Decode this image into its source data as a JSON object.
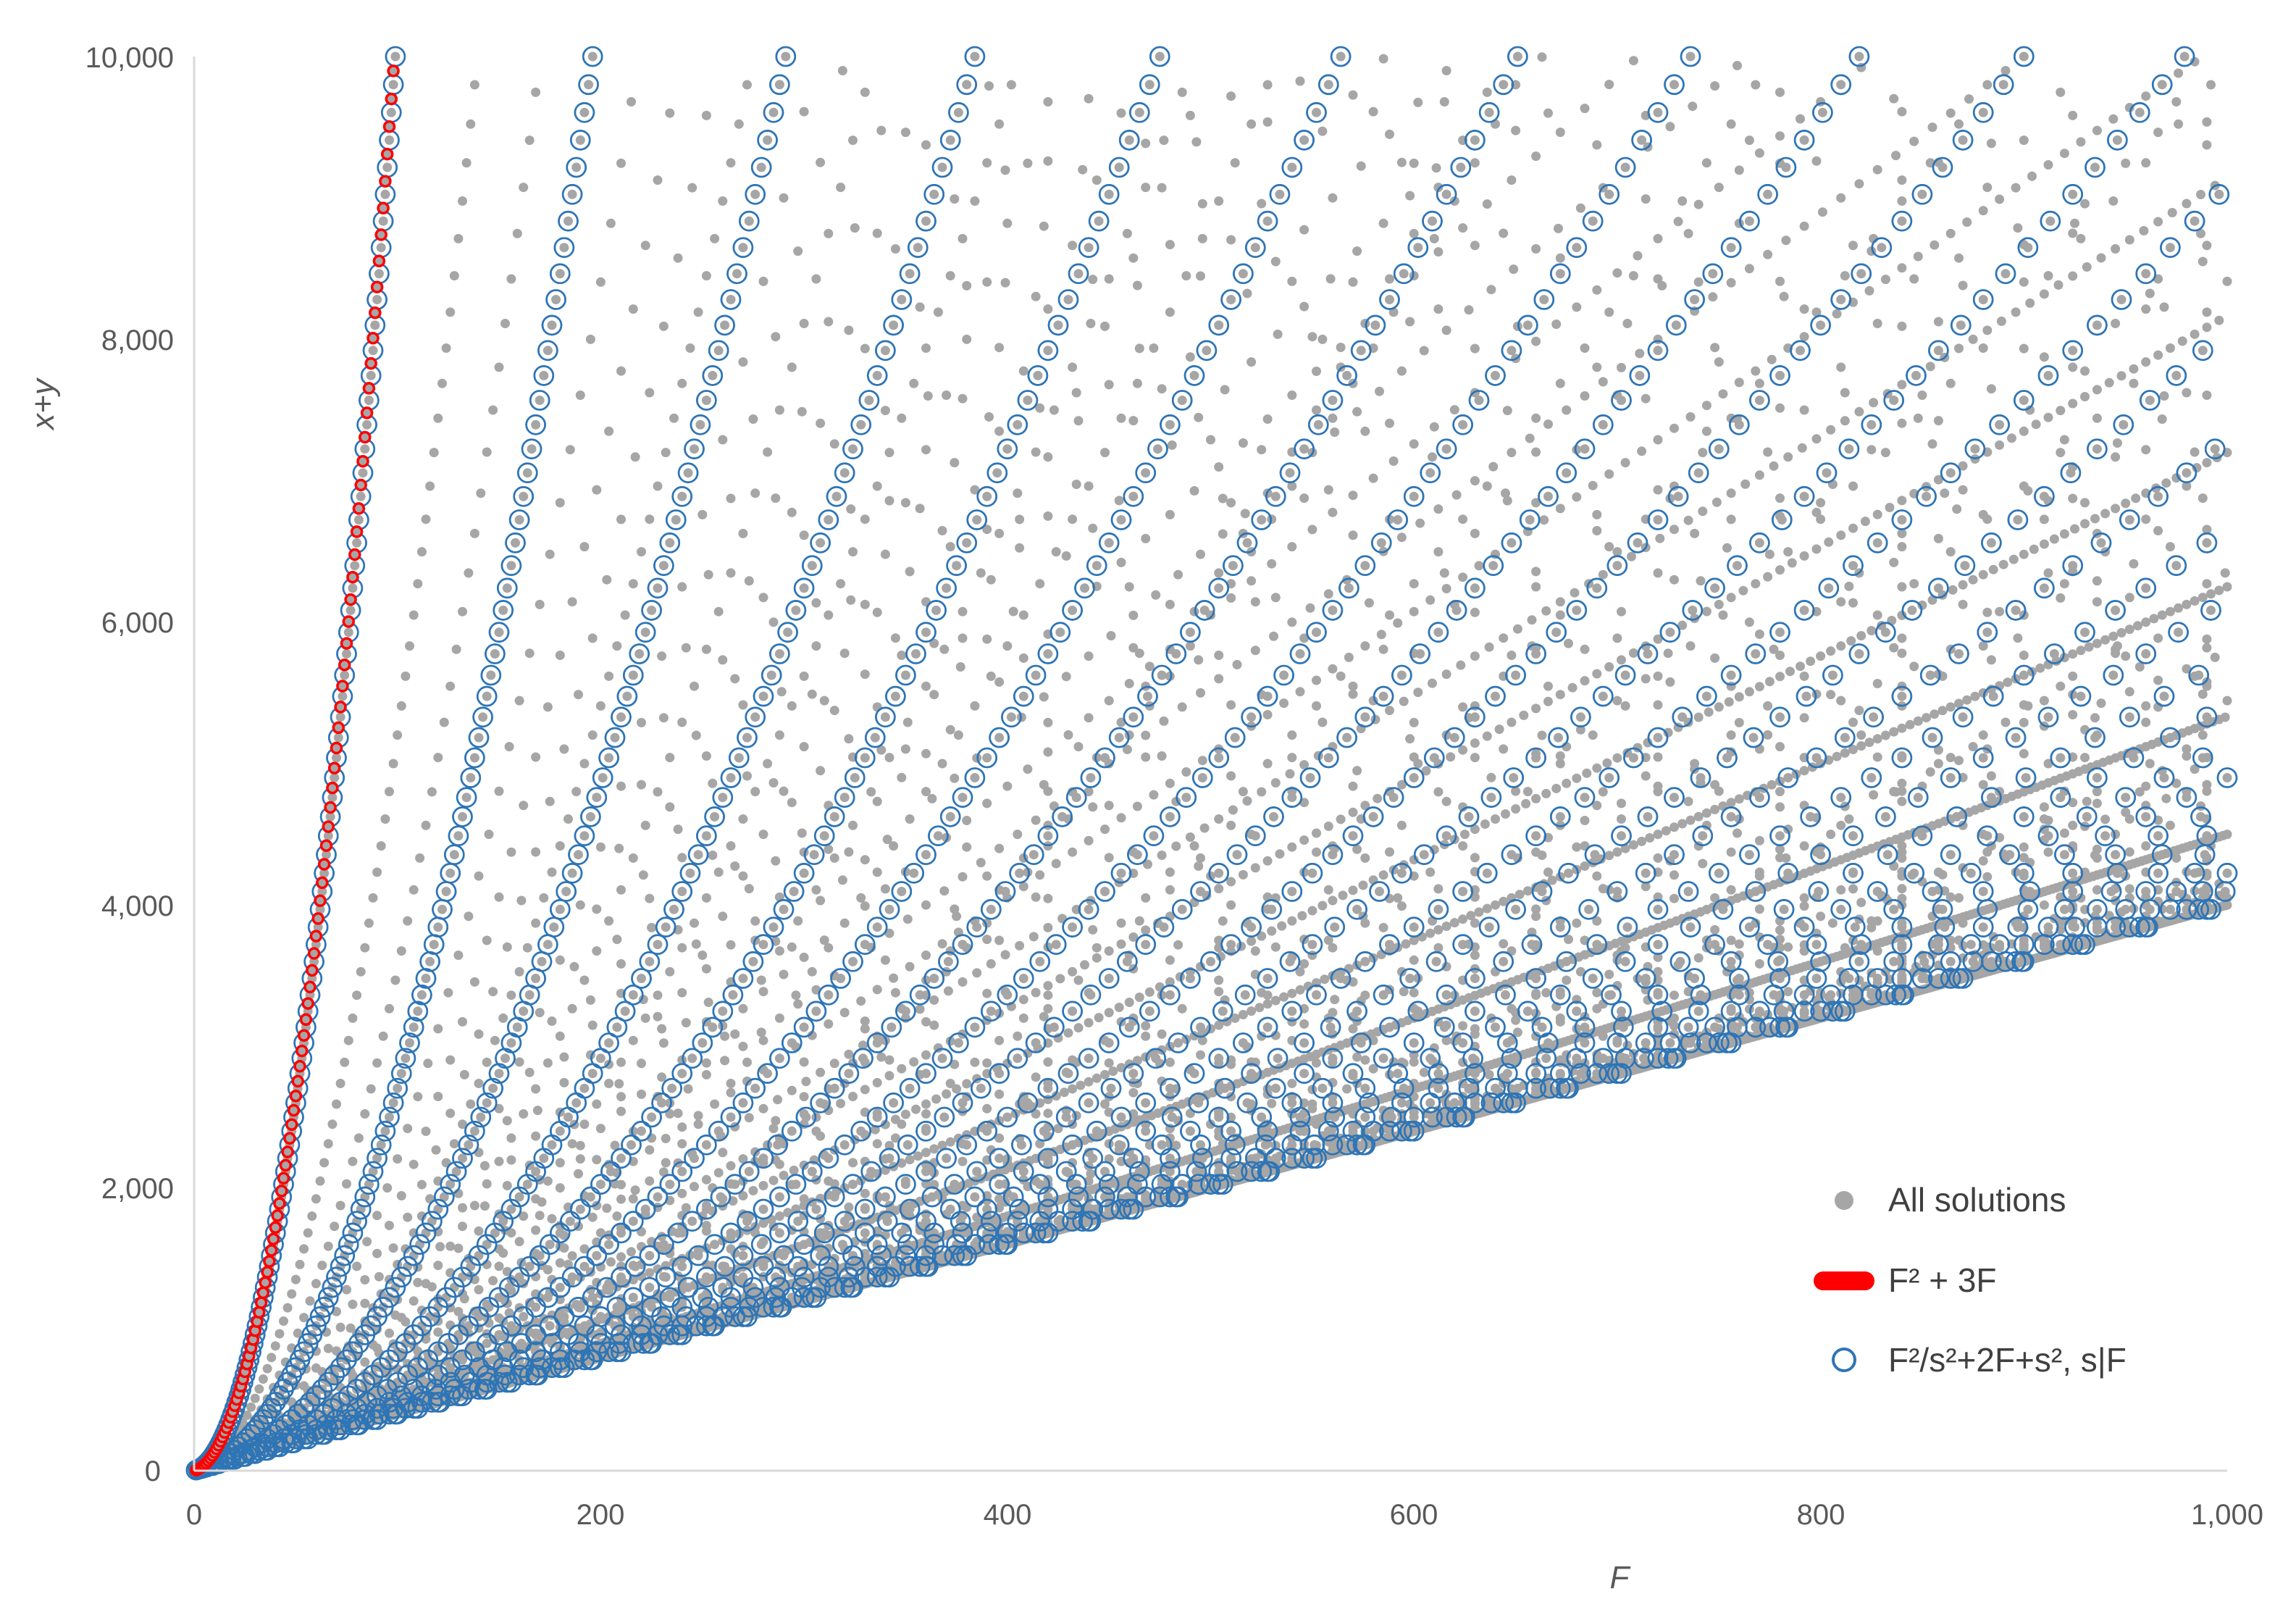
{
  "chart_data": {
    "type": "scatter",
    "title": "",
    "xlabel": "F",
    "ylabel": "x+y",
    "xlim": [
      0,
      1000
    ],
    "ylim": [
      0,
      10000
    ],
    "x_ticks": [
      "0",
      "200",
      "400",
      "600",
      "800",
      "1,000"
    ],
    "y_ticks": [
      "0",
      "2,000",
      "4,000",
      "6,000",
      "8,000",
      "10,000"
    ],
    "grid": false,
    "legend_position": "bottom-right",
    "colors": {
      "all": "#a6a6a6",
      "f2_3f": "#ff0000",
      "divisor": "#2e75b6",
      "axis": "#d9d9d9"
    },
    "series": [
      {
        "name": "All solutions",
        "marker": "filled-circle",
        "color": "#a6a6a6",
        "rule": "all (F, x+y) with 1/x + 1/y = 1/F style solutions: F^2/d + d + 2F for every divisor d of F^2, F = 1..1000, x+y <= 10000"
      },
      {
        "name": "F² + 3F",
        "marker": "filled-circle-red-outline",
        "color": "#ff0000",
        "rule": "x+y = F^2 + 3F, F = 1..98"
      },
      {
        "name": "F²/s²+2F+s², s|F",
        "marker": "open-circle",
        "color": "#2e75b6",
        "rule": "x+y = F^2/s^2 + 2F + s^2 for every divisor s of F, F = 1..1000, x+y <= 10000"
      }
    ]
  }
}
